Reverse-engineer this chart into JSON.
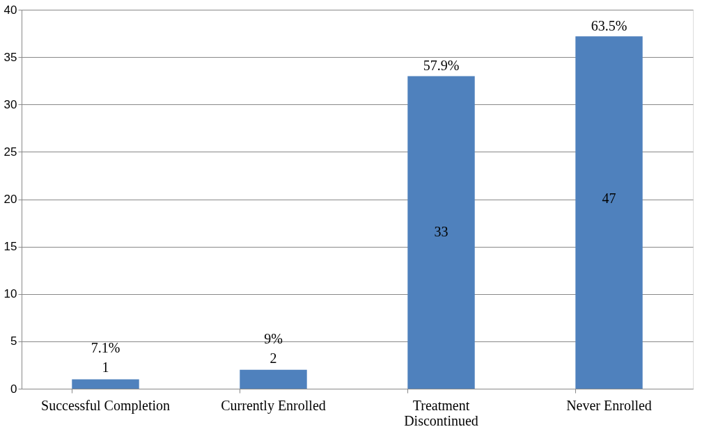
{
  "chart_data": {
    "type": "bar",
    "categories": [
      "Successful Completion",
      "Currently Enrolled",
      "Treatment Discontinued",
      "Never Enrolled"
    ],
    "values": [
      1,
      2,
      33,
      37.2
    ],
    "value_labels": [
      "1",
      "2",
      "33",
      null
    ],
    "color": "#4f81bd",
    "ylim": [
      0,
      40
    ],
    "yticks": [
      0,
      5,
      10,
      15,
      20,
      25,
      30,
      35,
      40
    ],
    "grid": "y",
    "annotations": [
      {
        "text": "7.1%",
        "x": "Successful Completion",
        "y": 1
      },
      {
        "text": "9%",
        "x": "Currently Enrolled",
        "y": 2
      },
      {
        "text": "57.9%",
        "x": "Treatment Discontinued",
        "y": 33
      },
      {
        "text": "63.5%",
        "x": "Never Enrolled",
        "y": 37.2
      },
      "47"
    ]
  }
}
